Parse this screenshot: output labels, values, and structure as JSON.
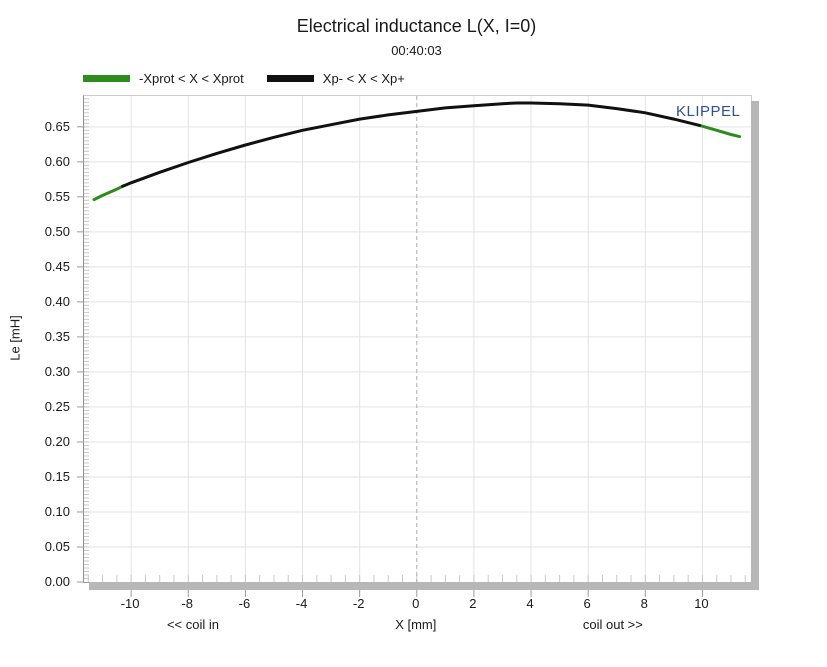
{
  "header": {
    "title": "Electrical inductance L(X, I=0)",
    "subtitle": "00:40:03"
  },
  "watermark": "KLIPPEL",
  "legend": {
    "items": [
      {
        "label": "-Xprot < X < Xprot",
        "color": "#2e8b1e"
      },
      {
        "label": "Xp- < X < Xp+",
        "color": "#111111"
      }
    ]
  },
  "chart_data": {
    "type": "line",
    "title": "Electrical inductance L(X, I=0)",
    "subtitle": "00:40:03",
    "xlabel": "X [mm]",
    "xlabel_left": "<< coil in",
    "xlabel_right": "coil out >>",
    "ylabel": "Le [mH]",
    "xlim": [
      -11.65,
      11.7
    ],
    "ylim": [
      0,
      0.694
    ],
    "grid": true,
    "cursor_x": 0,
    "x_ticks": [
      "-10",
      "-8",
      "-6",
      "-4",
      "-2",
      "0",
      "2",
      "4",
      "6",
      "8",
      "10"
    ],
    "x_minor_step": 0.5,
    "y_ticks": [
      "0.00",
      "0.05",
      "0.10",
      "0.15",
      "0.20",
      "0.25",
      "0.30",
      "0.35",
      "0.40",
      "0.45",
      "0.50",
      "0.55",
      "0.60",
      "0.65"
    ],
    "y_minor_step": 0.005,
    "series": [
      {
        "name": "-Xprot < X < Xprot",
        "color": "#2e8b1e",
        "x_ranges": [
          [
            -11.3,
            -10.3
          ],
          [
            9.9,
            11.3
          ]
        ]
      },
      {
        "name": "Xp- < X < Xp+",
        "color": "#111111",
        "x_ranges": [
          [
            -10.3,
            9.9
          ]
        ]
      }
    ],
    "curve": {
      "x": [
        -11.3,
        -11.0,
        -10.5,
        -10.3,
        -10.0,
        -9.0,
        -8.0,
        -7.0,
        -6.0,
        -5.0,
        -4.0,
        -3.0,
        -2.0,
        -1.0,
        0.0,
        1.0,
        2.0,
        3.0,
        3.5,
        4.0,
        5.0,
        6.0,
        7.0,
        8.0,
        9.0,
        9.9,
        10.5,
        11.0,
        11.3
      ],
      "le": [
        0.546,
        0.552,
        0.561,
        0.565,
        0.57,
        0.585,
        0.599,
        0.612,
        0.624,
        0.635,
        0.645,
        0.653,
        0.661,
        0.667,
        0.672,
        0.677,
        0.68,
        0.683,
        0.684,
        0.684,
        0.683,
        0.681,
        0.676,
        0.67,
        0.661,
        0.652,
        0.645,
        0.639,
        0.636
      ]
    },
    "colors": {
      "gridline": "#e3e3e3",
      "minor_tick": "#c9c9c9",
      "major_tick": "#9b9b9b",
      "cursor_line": "#ababab",
      "shadow": "#b7b7b7"
    }
  }
}
